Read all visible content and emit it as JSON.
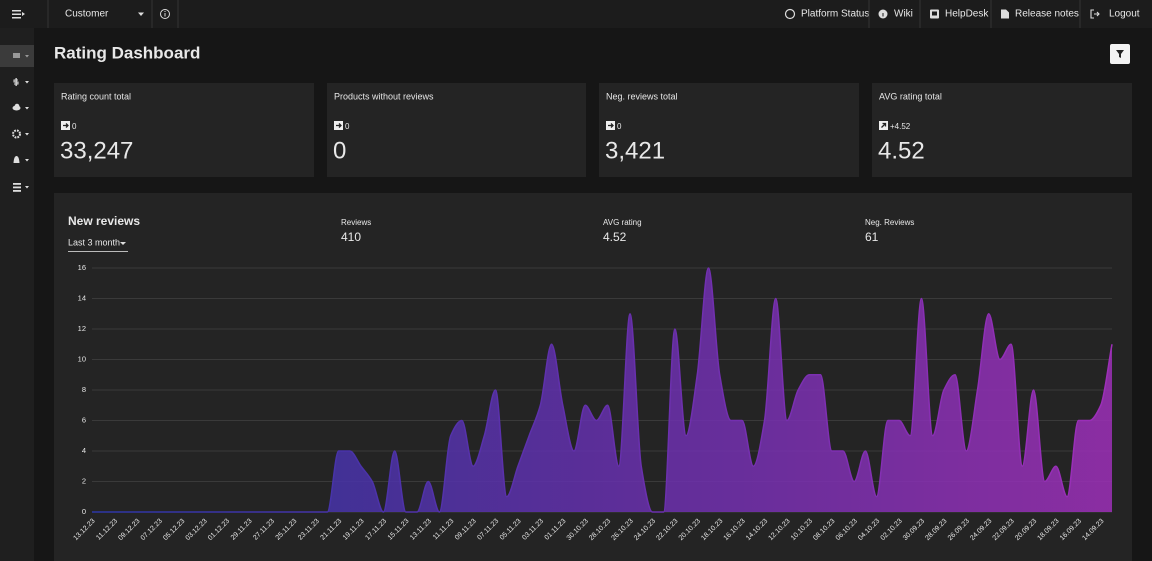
{
  "topbar": {
    "customer": "Customer",
    "links": [
      "Platform Status",
      "Wiki",
      "HelpDesk",
      "Release notes",
      "Logout"
    ]
  },
  "title": "Rating Dashboard",
  "cards": [
    {
      "label": "Rating count total",
      "delta": "0",
      "value": "33,247"
    },
    {
      "label": "Products without reviews",
      "delta": "0",
      "value": "0"
    },
    {
      "label": "Neg. reviews total",
      "delta": "0",
      "value": "3,421"
    },
    {
      "label": "AVG rating total",
      "delta": "+4.52",
      "value": "4.52"
    }
  ],
  "panel": {
    "title": "New reviews",
    "period": "Last 3 month",
    "stats": [
      {
        "label": "Reviews",
        "value": "410"
      },
      {
        "label": "AVG rating",
        "value": "4.52"
      },
      {
        "label": "Neg. Reviews",
        "value": "61"
      }
    ]
  },
  "chart_data": {
    "type": "area",
    "categories": [
      "13.12.23",
      null,
      "11.12.23",
      null,
      "09.12.23",
      null,
      "07.12.23",
      null,
      "05.12.23",
      null,
      "03.12.23",
      null,
      "01.12.23",
      null,
      "29.11.23",
      null,
      "27.11.23",
      null,
      "25.11.23",
      null,
      "23.11.23",
      null,
      "21.11.23",
      null,
      "19.11.23",
      null,
      "17.11.23",
      null,
      "15.11.23",
      null,
      "13.11.23",
      null,
      "11.11.23",
      null,
      "09.11.23",
      null,
      "07.11.23",
      null,
      "05.11.23",
      null,
      "03.11.23",
      null,
      "01.11.23",
      null,
      "30.10.23",
      null,
      "28.10.23",
      null,
      "26.10.23",
      null,
      "24.10.23",
      null,
      "22.10.23",
      null,
      "20.10.23",
      null,
      "18.10.23",
      null,
      "16.10.23",
      null,
      "14.10.23",
      null,
      "12.10.23",
      null,
      "10.10.23",
      null,
      "08.10.23",
      null,
      "06.10.23",
      null,
      "04.10.23",
      null,
      "02.10.23",
      null,
      "30.09.23",
      null,
      "28.09.23",
      null,
      "26.09.23",
      null,
      "24.09.23",
      null,
      "22.09.23",
      null,
      "20.09.23",
      null,
      "18.09.23",
      null,
      "16.09.23",
      null,
      "14.09.23",
      null
    ],
    "values": [
      0,
      0,
      0,
      0,
      0,
      0,
      0,
      0,
      0,
      0,
      0,
      0,
      0,
      0,
      0,
      0,
      0,
      0,
      0,
      0,
      0,
      0,
      4,
      4,
      3,
      2,
      0,
      4,
      0,
      0,
      2,
      0,
      5,
      6,
      3,
      5,
      8,
      1,
      3,
      5,
      7,
      11,
      7,
      4,
      7,
      6,
      7,
      3,
      13,
      3,
      0,
      0,
      12,
      5,
      9,
      16,
      9,
      6,
      6,
      3,
      6,
      14,
      6,
      8,
      9,
      9,
      4,
      4,
      2,
      4,
      1,
      6,
      6,
      5,
      14,
      5,
      8,
      9,
      4,
      8,
      13,
      10,
      11,
      3,
      8,
      2,
      3,
      1,
      6,
      6,
      7,
      11
    ],
    "ylim": [
      0,
      16
    ],
    "yticks": [
      0,
      2,
      4,
      6,
      8,
      10,
      12,
      14,
      16
    ],
    "grid": true,
    "colors": [
      "#2c36a6",
      "#6530ad",
      "#9d2fb8"
    ]
  }
}
